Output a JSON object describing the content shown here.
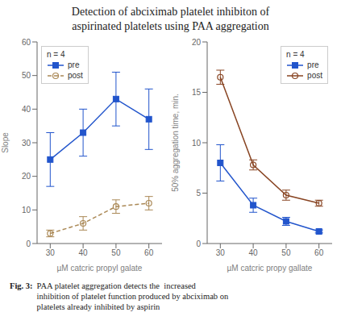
{
  "chart_data": [
    {
      "type": "line",
      "title": "Detection of abciximab platelet inhibiton of\naspirinated platelets using PAA aggregation",
      "caption": [
        "Fig. 3:",
        "PAA platelet aggregation detects the  increased\ninhibition of platelet function produced by abciximab on\nplatelets already inhibited by aspirin"
      ],
      "x_label": "µM catcric propyl galate",
      "y_label": "Slope",
      "x": [
        30,
        40,
        50,
        60
      ],
      "xlim": [
        26,
        64
      ],
      "xticks": [
        30,
        40,
        50,
        60
      ],
      "ylim": [
        0,
        60
      ],
      "yticks": [
        0,
        10,
        20,
        30,
        40,
        50,
        60
      ],
      "grid": false,
      "legend": "upper left",
      "annotations": [
        "n = 4"
      ],
      "series": [
        {
          "name": "pre",
          "color": "#2255cc",
          "marker": "square",
          "line_style": "solid",
          "values": [
            25,
            33,
            43,
            37
          ],
          "yerr": [
            8,
            7,
            8,
            9
          ]
        },
        {
          "name": "post",
          "color": "#aa8855",
          "marker": "circle_open",
          "line_style": "dashed",
          "values": [
            3,
            6,
            11,
            12
          ],
          "yerr": [
            1,
            2,
            2,
            2
          ]
        }
      ]
    },
    {
      "type": "line",
      "x_label": "µM catcric propy gallate",
      "y_label": "50% aggregation time, min.",
      "x": [
        30,
        40,
        50,
        60
      ],
      "xlim": [
        26,
        64
      ],
      "xticks": [
        30,
        40,
        50,
        60
      ],
      "ylim": [
        0,
        20
      ],
      "yticks": [
        0,
        5,
        10,
        15,
        20
      ],
      "grid": false,
      "legend": "upper right",
      "annotations": [
        "n = 4"
      ],
      "series": [
        {
          "name": "pre",
          "color": "#2255cc",
          "marker": "square",
          "line_style": "solid",
          "values": [
            8.0,
            3.8,
            2.2,
            1.2
          ],
          "yerr": [
            1.8,
            0.7,
            0.4,
            0.15
          ]
        },
        {
          "name": "post",
          "color": "#884422",
          "marker": "circle_open",
          "line_style": "solid",
          "values": [
            16.5,
            7.8,
            4.8,
            4.0
          ],
          "yerr": [
            0.7,
            0.5,
            0.5,
            0.3
          ]
        }
      ]
    }
  ]
}
